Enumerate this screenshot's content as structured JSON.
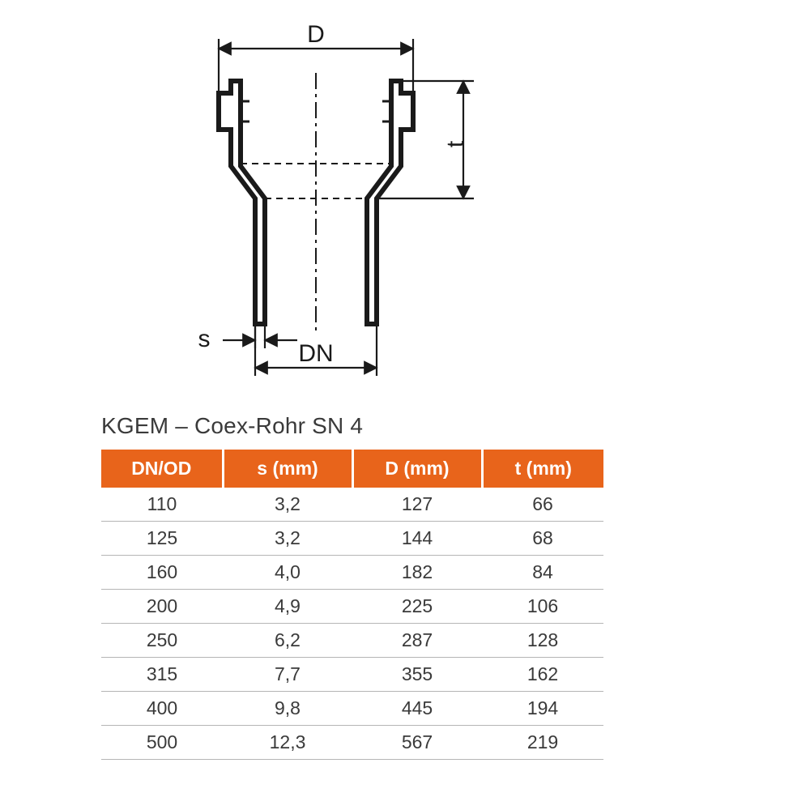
{
  "diagram": {
    "labels": {
      "D": "D",
      "t": "t",
      "s": "s",
      "DN": "DN"
    },
    "stroke_color": "#1a1a1a",
    "stroke_width_main": 6,
    "stroke_width_dim": 2.2,
    "font_family": "Arial, sans-serif",
    "label_fontsize": 30
  },
  "table": {
    "title": "KGEM – Coex-Rohr SN 4",
    "header_bg": "#e8641b",
    "header_fg": "#ffffff",
    "body_fg": "#3a3a3a",
    "row_border": "#b5b5b5",
    "header_fontsize": 23,
    "body_fontsize": 23,
    "columns": [
      "DN/OD",
      "s (mm)",
      "D (mm)",
      "t (mm)"
    ],
    "rows": [
      [
        "110",
        "3,2",
        "127",
        "66"
      ],
      [
        "125",
        "3,2",
        "144",
        "68"
      ],
      [
        "160",
        "4,0",
        "182",
        "84"
      ],
      [
        "200",
        "4,9",
        "225",
        "106"
      ],
      [
        "250",
        "6,2",
        "287",
        "128"
      ],
      [
        "315",
        "7,7",
        "355",
        "162"
      ],
      [
        "400",
        "9,8",
        "445",
        "194"
      ],
      [
        "500",
        "12,3",
        "567",
        "219"
      ]
    ]
  }
}
